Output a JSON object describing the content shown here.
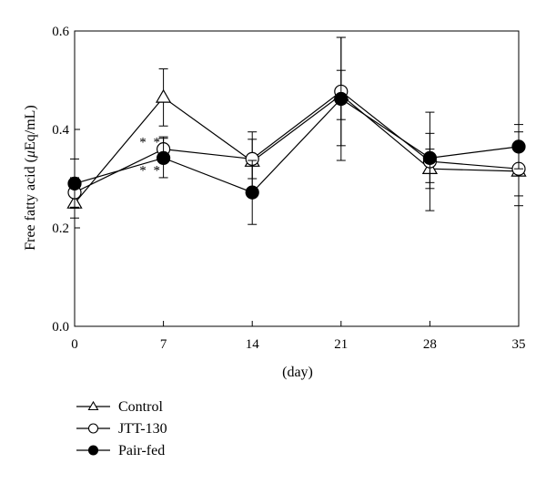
{
  "chart_data": {
    "type": "line",
    "xlabel": "(day)",
    "ylabel_prefix": "Free fatty acid (",
    "ylabel_unit_symbol": "μ",
    "ylabel_suffix": "Eq/mL)",
    "x": [
      0,
      7,
      14,
      21,
      28,
      35
    ],
    "x_tick_labels": [
      "0",
      "7",
      "14",
      "21",
      "28",
      "35"
    ],
    "xlim": [
      0,
      35
    ],
    "ylim": [
      0.0,
      0.6
    ],
    "y_ticks": [
      0.0,
      0.2,
      0.4,
      0.6
    ],
    "y_tick_labels": [
      "0.0",
      "0.2",
      "0.4",
      "0.6"
    ],
    "grid": false,
    "legend_position": "bottom-left",
    "series": [
      {
        "name": "Control",
        "marker": "open-triangle",
        "values": [
          0.25,
          0.465,
          0.335,
          0.47,
          0.32,
          0.315
        ],
        "errors": [
          0.03,
          0.058,
          0.06,
          0.05,
          0.04,
          0.05
        ]
      },
      {
        "name": "JTT-130",
        "marker": "open-circle",
        "values": [
          0.272,
          0.36,
          0.34,
          0.477,
          0.335,
          0.32
        ],
        "errors": [
          0.03,
          0.025,
          0.04,
          0.11,
          0.1,
          0.075
        ]
      },
      {
        "name": "Pair-fed",
        "marker": "filled-circle",
        "values": [
          0.29,
          0.342,
          0.272,
          0.462,
          0.342,
          0.365
        ],
        "errors": [
          0.05,
          0.04,
          0.065,
          0.125,
          0.05,
          0.045
        ]
      }
    ],
    "annotations": [
      {
        "text": "* *",
        "x": 7,
        "y": 0.375
      },
      {
        "text": "* *",
        "x": 7,
        "y": 0.318
      }
    ]
  }
}
